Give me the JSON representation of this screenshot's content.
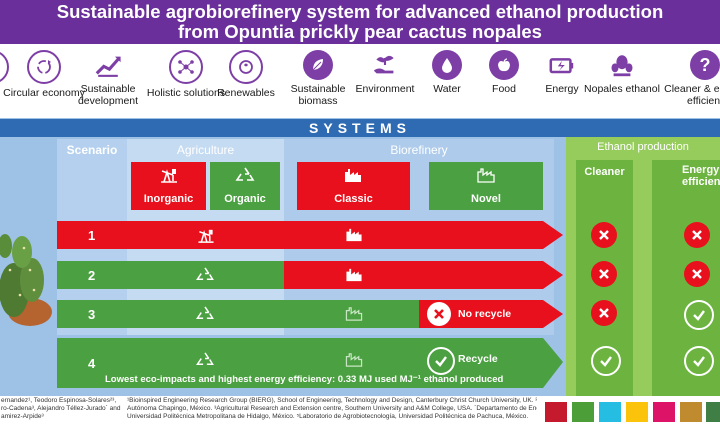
{
  "header": {
    "title_line1": "Sustainable agrobiorefinery system for advanced ethanol production",
    "title_line2": "from Opuntia prickly pear cactus nopales"
  },
  "icon_bar": [
    {
      "label": "",
      "icon": "partial-icon"
    },
    {
      "label": "Circular economy",
      "icon": "circular-arrows-icon"
    },
    {
      "label": "Sustainable development",
      "icon": "growth-chart-icon"
    },
    {
      "label": "Holistic solutions",
      "icon": "network-icon"
    },
    {
      "label": "Renewables",
      "icon": "renewable-icon"
    },
    {
      "label": "Sustainable biomass",
      "icon": "leaf-icon"
    },
    {
      "label": "Environment",
      "icon": "hand-plant-icon"
    },
    {
      "label": "Water",
      "icon": "water-drop-icon"
    },
    {
      "label": "Food",
      "icon": "apple-icon"
    },
    {
      "label": "Energy",
      "icon": "battery-icon"
    },
    {
      "label": "Nopales ethanol",
      "icon": "cactus-icon"
    },
    {
      "label": "Cleaner & energy efficient",
      "icon": "question-icon"
    }
  ],
  "systems": {
    "title": "SYSTEMS",
    "scenario_header": "Scenario",
    "agriculture_header": "Agriculture",
    "biorefinery_header": "Biorefinery",
    "ethanol_header": "Ethanol production",
    "cleaner_header": "Cleaner",
    "energy_header": "Energy efficient",
    "inorganic_label": "Inorganic",
    "organic_label": "Organic",
    "classic_label": "Classic",
    "novel_label": "Novel"
  },
  "scenarios": [
    {
      "number": "1",
      "note": "",
      "cleaner": "no",
      "energy_efficient": "no"
    },
    {
      "number": "2",
      "note": "",
      "cleaner": "no",
      "energy_efficient": "no"
    },
    {
      "number": "3",
      "note": "No recycle",
      "cleaner": "no",
      "energy_efficient": "yes"
    },
    {
      "number": "4",
      "note": "Recycle",
      "cleaner": "yes",
      "energy_efficient": "yes"
    }
  ],
  "summary": "Lowest eco-impacts and highest energy efficiency: 0.33 MJ used MJ⁻¹ ethanol produced",
  "footer": {
    "authors_line1": "ernandez¹,   Teodoro   Espinosa-Solares²³,",
    "authors_line2": "ro-Cadena³, Alejandro Téllez-Jurado´ and",
    "authors_line3": "amirez-Arpide³",
    "affiliations_line1": "¹Bioinspired Engineering Research Group (BIERG), School of Engineering, Technology and Design, Canterbury Christ Church University, UK. ²Universidad",
    "affiliations_line2": "Autónoma Chapingo, México. ³Agricultural Research and Extension centre, Southern University and A&M College, USA. ´Departamento de Energía,",
    "affiliations_line3": "Universidad Politécnica Metropolitana de Hidalgo, México. ⁵Laboratorio de Agrobiotecnología, Universidad Politécnica de Pachuca, México."
  },
  "colors": {
    "purple": "#6a2f9a",
    "red": "#e8101c",
    "green": "#4ba041",
    "blue_band": "#2f6bb3",
    "light_blue": "#9ec1e6",
    "light_green": "#96cc5b"
  }
}
